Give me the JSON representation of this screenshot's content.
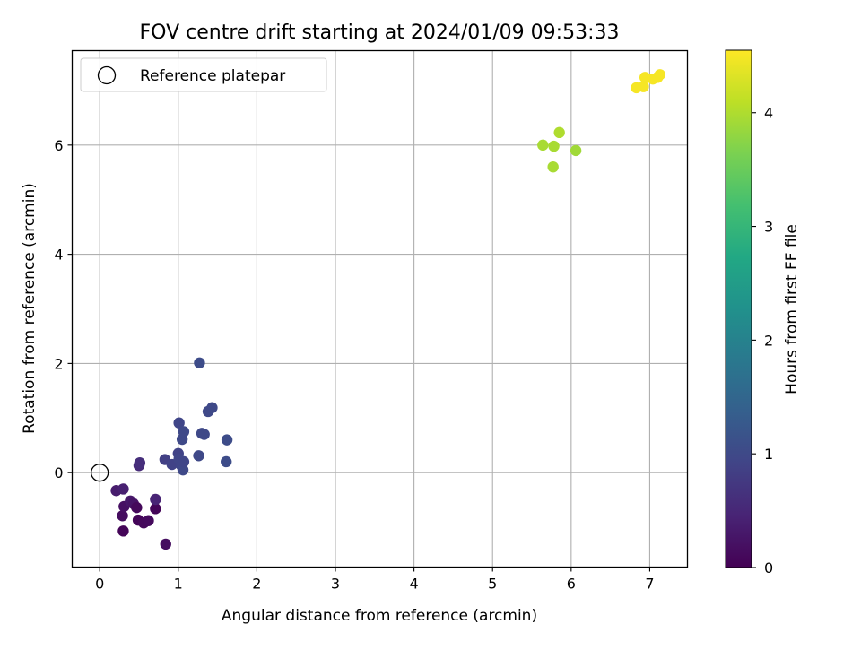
{
  "chart_data": {
    "type": "scatter",
    "title": "FOV centre drift starting at 2024/01/09 09:53:33",
    "xlabel": "Angular distance from reference (arcmin)",
    "ylabel": "Rotation from reference (arcmin)",
    "xlim": [
      -0.35,
      7.48
    ],
    "ylim": [
      -1.73,
      7.73
    ],
    "xticks": [
      0,
      1,
      2,
      3,
      4,
      5,
      6,
      7
    ],
    "yticks": [
      0,
      2,
      4,
      6
    ],
    "grid": true,
    "legend": {
      "placement": "top-left",
      "entries": [
        {
          "label": "Reference platepar",
          "marker": "open-circle",
          "edge_color": "#000000"
        }
      ]
    },
    "reference_point": {
      "x": 0,
      "y": 0
    },
    "colorbar": {
      "label": "Hours from first FF file",
      "colormap": "viridis",
      "range": [
        0,
        4.55
      ],
      "ticks": [
        0,
        1,
        2,
        3,
        4
      ]
    },
    "points": [
      {
        "x": 0.21,
        "y": -0.33,
        "c": 0.35
      },
      {
        "x": 0.3,
        "y": -0.3,
        "c": 0.4
      },
      {
        "x": 0.29,
        "y": -0.79,
        "c": 0.15
      },
      {
        "x": 0.31,
        "y": -0.62,
        "c": 0.2
      },
      {
        "x": 0.39,
        "y": -0.52,
        "c": 0.3
      },
      {
        "x": 0.43,
        "y": -0.57,
        "c": 0.25
      },
      {
        "x": 0.47,
        "y": -0.64,
        "c": 0.1
      },
      {
        "x": 0.3,
        "y": -1.07,
        "c": 0.05
      },
      {
        "x": 0.49,
        "y": -0.87,
        "c": 0.05
      },
      {
        "x": 0.56,
        "y": -0.92,
        "c": 0.1
      },
      {
        "x": 0.62,
        "y": -0.88,
        "c": 0.12
      },
      {
        "x": 0.71,
        "y": -0.66,
        "c": 0.05
      },
      {
        "x": 0.71,
        "y": -0.49,
        "c": 0.45
      },
      {
        "x": 0.84,
        "y": -1.31,
        "c": 0.15
      },
      {
        "x": 0.5,
        "y": 0.13,
        "c": 0.55
      },
      {
        "x": 0.51,
        "y": 0.18,
        "c": 0.6
      },
      {
        "x": 0.83,
        "y": 0.24,
        "c": 0.85
      },
      {
        "x": 0.92,
        "y": 0.15,
        "c": 0.9
      },
      {
        "x": 1.0,
        "y": 0.35,
        "c": 0.9
      },
      {
        "x": 1.01,
        "y": 0.25,
        "c": 0.95
      },
      {
        "x": 1.04,
        "y": 0.13,
        "c": 0.95
      },
      {
        "x": 1.06,
        "y": 0.05,
        "c": 1.0
      },
      {
        "x": 1.07,
        "y": 0.2,
        "c": 0.95
      },
      {
        "x": 1.01,
        "y": 0.91,
        "c": 0.95
      },
      {
        "x": 1.05,
        "y": 0.61,
        "c": 1.0
      },
      {
        "x": 1.07,
        "y": 0.75,
        "c": 1.0
      },
      {
        "x": 1.26,
        "y": 0.31,
        "c": 1.0
      },
      {
        "x": 1.3,
        "y": 0.72,
        "c": 1.0
      },
      {
        "x": 1.33,
        "y": 0.7,
        "c": 1.0
      },
      {
        "x": 1.38,
        "y": 1.12,
        "c": 1.0
      },
      {
        "x": 1.43,
        "y": 1.19,
        "c": 1.0
      },
      {
        "x": 1.27,
        "y": 2.01,
        "c": 1.05
      },
      {
        "x": 1.61,
        "y": 0.2,
        "c": 1.05
      },
      {
        "x": 1.62,
        "y": 0.6,
        "c": 1.05
      },
      {
        "x": 5.64,
        "y": 6.0,
        "c": 3.95
      },
      {
        "x": 5.78,
        "y": 5.98,
        "c": 3.95
      },
      {
        "x": 5.85,
        "y": 6.23,
        "c": 4.0
      },
      {
        "x": 5.77,
        "y": 5.6,
        "c": 3.95
      },
      {
        "x": 6.06,
        "y": 5.9,
        "c": 3.9
      },
      {
        "x": 6.83,
        "y": 7.05,
        "c": 4.5
      },
      {
        "x": 6.92,
        "y": 7.07,
        "c": 4.5
      },
      {
        "x": 6.94,
        "y": 7.24,
        "c": 4.5
      },
      {
        "x": 7.04,
        "y": 7.21,
        "c": 4.5
      },
      {
        "x": 7.1,
        "y": 7.24,
        "c": 4.5
      },
      {
        "x": 7.13,
        "y": 7.29,
        "c": 4.5
      }
    ]
  }
}
